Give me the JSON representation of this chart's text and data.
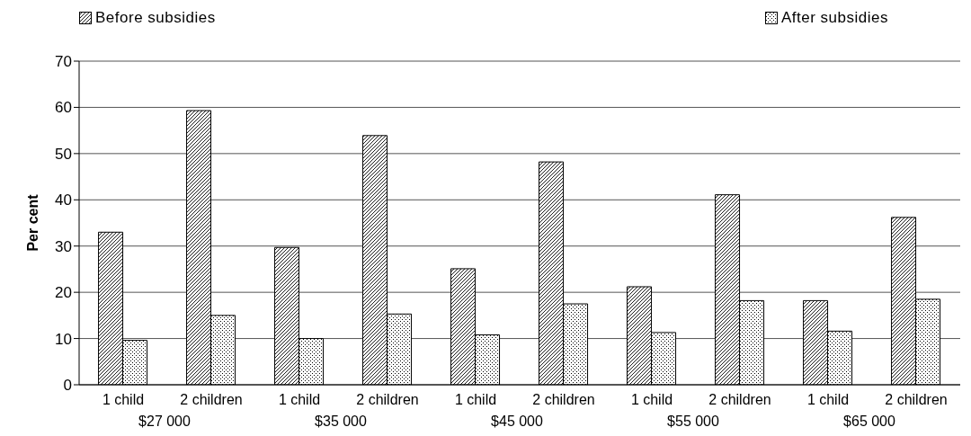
{
  "chart_data": {
    "type": "bar",
    "ylabel": "Per cent",
    "categories": [
      "1 child",
      "2 children",
      "1 child",
      "2 children",
      "1 child",
      "2 children",
      "1 child",
      "2 children",
      "1 child",
      "2 children"
    ],
    "series": [
      {
        "name": "Before subsidies",
        "color": "#000000",
        "values": [
          33,
          59.3,
          29.7,
          53.9,
          25.1,
          48.2,
          21.2,
          41.1,
          18.2,
          36.2
        ]
      },
      {
        "name": "After subsidies",
        "color": "#000000",
        "values": [
          9.6,
          15,
          10,
          15.3,
          10.8,
          17.5,
          11.3,
          18.2,
          11.6,
          18.5
        ]
      }
    ],
    "annotations": [
      "$27 000",
      "$35 000",
      "$45 000",
      "$55 000",
      "$65 000"
    ],
    "ylim": [
      0,
      70
    ],
    "yticks": [
      0,
      10,
      20,
      30,
      40,
      50,
      60,
      70
    ],
    "grid": "y",
    "legend": "top"
  }
}
